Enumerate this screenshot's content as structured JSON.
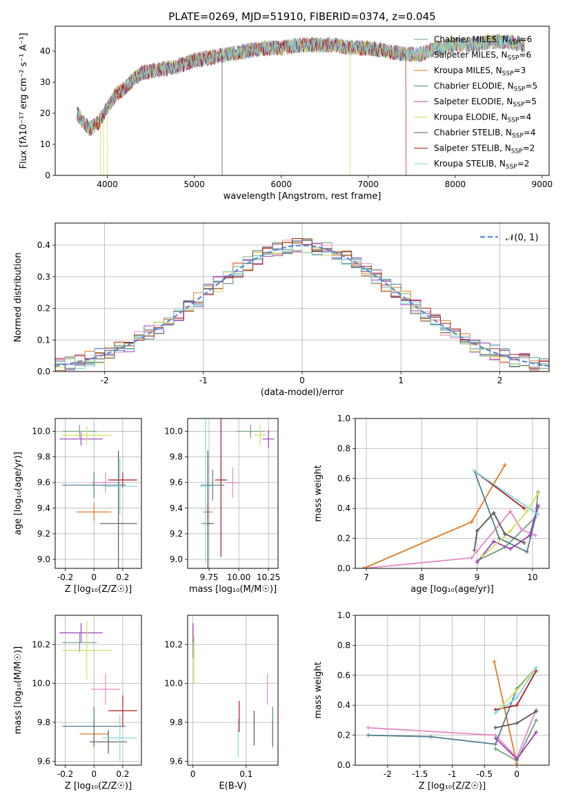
{
  "figure_title": "PLATE=0269, MJD=51910, FIBERID=0374, z=0.045",
  "model_colors": [
    "#6a9f7d",
    "#e887c0",
    "#e07a1f",
    "#4c7d8e",
    "#9b3fb8",
    "#cfe05a",
    "#555555",
    "#b0171c",
    "#7fd6e0"
  ],
  "chart_data": [
    {
      "id": "spectrum",
      "type": "line",
      "title": "PLATE=0269, MJD=51910, FIBERID=0374, z=0.045",
      "xlabel": "wavelength [Angstrom, rest frame]",
      "ylabel": "Flux [fλ10⁻¹⁷ erg cm⁻² s⁻¹ A⁻¹]",
      "xlim": [
        3400,
        9080
      ],
      "ylim": [
        0,
        48
      ],
      "xticks": [
        4000,
        5000,
        6000,
        7000,
        8000,
        9000
      ],
      "yticks": [
        0,
        10,
        20,
        30,
        40
      ],
      "grid": false,
      "legend": "top-right",
      "series": [
        {
          "name": "Chabrier MILES, N",
          "sub": "SSP",
          "suffix": "=6"
        },
        {
          "name": "Salpeter MILES, N",
          "sub": "SSP",
          "suffix": "=6"
        },
        {
          "name": "Kroupa MILES, N",
          "sub": "SSP",
          "suffix": "=3"
        },
        {
          "name": "Chabrier ELODIE, N",
          "sub": "SSP",
          "suffix": "=5"
        },
        {
          "name": "Salpeter ELODIE, N",
          "sub": "SSP",
          "suffix": "=5"
        },
        {
          "name": "Kroupa ELODIE, N",
          "sub": "SSP",
          "suffix": "=4"
        },
        {
          "name": "Chabrier STELIB, N",
          "sub": "SSP",
          "suffix": "=4"
        },
        {
          "name": "Salpeter STELIB, N",
          "sub": "SSP",
          "suffix": "=2"
        },
        {
          "name": "Kroupa STELIB, N",
          "sub": "SSP",
          "suffix": "=2"
        }
      ],
      "continuum": {
        "x": [
          3650,
          3700,
          3800,
          3900,
          4000,
          4100,
          4200,
          4300,
          4400,
          4600,
          4800,
          5000,
          5200,
          5400,
          5600,
          5800,
          6000,
          6200,
          6400,
          6600,
          6800,
          7000,
          7200,
          7400,
          7600,
          7800,
          8000,
          8200,
          8400,
          8600,
          8800
        ],
        "y": [
          20,
          18,
          15,
          17,
          22,
          26,
          28,
          31,
          33,
          34,
          35,
          37,
          38,
          39,
          40,
          41,
          41,
          42,
          42,
          42,
          41,
          41,
          40,
          39,
          39,
          41,
          42,
          42,
          43,
          43,
          42
        ]
      }
    },
    {
      "id": "residuals",
      "type": "step",
      "xlabel": "(data-model)/error",
      "ylabel": "Normed distribution",
      "xlim": [
        -2.5,
        2.5
      ],
      "ylim": [
        0,
        0.47
      ],
      "xticks": [
        -2,
        -1,
        0,
        1,
        2
      ],
      "yticks": [
        0.0,
        0.1,
        0.2,
        0.3,
        0.4
      ],
      "grid": true,
      "legend": "top-right",
      "reference": {
        "name": "𝒩(0, 1)",
        "mean": 0,
        "sigma": 1
      },
      "bin_width": 0.1
    },
    {
      "id": "age-vs-Z",
      "type": "scatter",
      "xlabel": "Z [log₁₀(Z/Z☉)]",
      "ylabel": "age  [log₁₀(age/yr)]",
      "xlim": [
        -0.27,
        0.33
      ],
      "ylim": [
        8.93,
        10.1
      ],
      "xticks": [
        -0.2,
        0.0,
        0.2
      ],
      "yticks": [
        9.0,
        9.2,
        9.4,
        9.6,
        9.8,
        10.0
      ],
      "grid": true,
      "points": [
        {
          "x": -0.1,
          "y": 10.0,
          "ex": 0.12,
          "ey": 0.05,
          "c": 0
        },
        {
          "x": 0.08,
          "y": 9.6,
          "ex": 0.1,
          "ey": 0.08,
          "c": 1
        },
        {
          "x": 0.0,
          "y": 9.37,
          "ex": 0.12,
          "ey": 0.07,
          "c": 2
        },
        {
          "x": 0.0,
          "y": 9.58,
          "ex": 0.22,
          "ey": 0.1,
          "c": 3
        },
        {
          "x": -0.09,
          "y": 9.94,
          "ex": 0.15,
          "ey": 0.05,
          "c": 4
        },
        {
          "x": -0.05,
          "y": 9.97,
          "ex": 0.17,
          "ey": 0.07,
          "c": 5
        },
        {
          "x": 0.17,
          "y": 9.28,
          "ex": 0.13,
          "ey": 0.57,
          "c": 6
        },
        {
          "x": 0.2,
          "y": 9.62,
          "ex": 0.1,
          "ey": 0.06,
          "c": 7
        },
        {
          "x": 0.18,
          "y": 9.57,
          "ex": 0.12,
          "ey": 0.22,
          "c": 8
        }
      ]
    },
    {
      "id": "age-vs-mass",
      "type": "scatter",
      "xlabel": "mass [log₁₀(M/M☉)]",
      "ylabel": "",
      "xlim": [
        9.57,
        10.33
      ],
      "ylim": [
        8.93,
        10.1
      ],
      "xticks": [
        9.75,
        10.0,
        10.25
      ],
      "xticklabels": [
        "9.75",
        "10.00",
        "10.25"
      ],
      "yticks": [
        9.0,
        9.2,
        9.4,
        9.6,
        9.8,
        10.0
      ],
      "grid": true,
      "points": [
        {
          "x": 10.1,
          "y": 10.0,
          "ex": 0.12,
          "ey": 0.05,
          "c": 0
        },
        {
          "x": 9.95,
          "y": 9.6,
          "ex": 0.06,
          "ey": 0.12,
          "c": 1
        },
        {
          "x": 9.74,
          "y": 9.37,
          "ex": 0.04,
          "ey": 0.07,
          "c": 2
        },
        {
          "x": 9.78,
          "y": 9.58,
          "ex": 0.1,
          "ey": 0.12,
          "c": 3
        },
        {
          "x": 10.25,
          "y": 9.94,
          "ex": 0.05,
          "ey": 0.07,
          "c": 4
        },
        {
          "x": 10.18,
          "y": 9.97,
          "ex": 0.05,
          "ey": 0.08,
          "c": 5
        },
        {
          "x": 9.74,
          "y": 9.28,
          "ex": 0.05,
          "ey": 0.57,
          "c": 6
        },
        {
          "x": 9.85,
          "y": 9.62,
          "ex": 0.05,
          "ey": 0.6,
          "c": 7
        },
        {
          "x": 9.72,
          "y": 9.57,
          "ex": 0.05,
          "ey": 0.6,
          "c": 8
        }
      ]
    },
    {
      "id": "weight-vs-age",
      "type": "line",
      "xlabel": "age  [log₁₀(age/yr)]",
      "ylabel": "mass weight",
      "xlim": [
        6.8,
        10.3
      ],
      "ylim": [
        0,
        1.0
      ],
      "xticks": [
        7,
        8,
        9,
        10
      ],
      "yticks": [
        0.0,
        0.2,
        0.4,
        0.6,
        0.8,
        1.0
      ],
      "grid": true,
      "series": [
        {
          "c": 0,
          "x": [
            9.0,
            9.5,
            10.05,
            10.1
          ],
          "y": [
            0.05,
            0.14,
            0.34,
            0.51
          ]
        },
        {
          "c": 1,
          "x": [
            6.95,
            8.9,
            9.6,
            9.8,
            10.05
          ],
          "y": [
            0.0,
            0.07,
            0.38,
            0.26,
            0.22
          ]
        },
        {
          "c": 2,
          "x": [
            6.95,
            8.9,
            9.5
          ],
          "y": [
            0.0,
            0.31,
            0.69
          ]
        },
        {
          "c": 3,
          "x": [
            8.95,
            9.4,
            9.9,
            10.1
          ],
          "y": [
            0.65,
            0.2,
            0.11,
            0.41
          ]
        },
        {
          "c": 4,
          "x": [
            9.0,
            9.3,
            9.6,
            9.95,
            10.1
          ],
          "y": [
            0.04,
            0.18,
            0.13,
            0.22,
            0.42
          ]
        },
        {
          "c": 5,
          "x": [
            9.1,
            9.6,
            9.9,
            10.1
          ],
          "y": [
            0.08,
            0.25,
            0.38,
            0.5
          ]
        },
        {
          "c": 6,
          "x": [
            8.95,
            9.0,
            9.3,
            9.5,
            9.85
          ],
          "y": [
            0.12,
            0.25,
            0.37,
            0.23,
            0.17
          ]
        },
        {
          "c": 7,
          "x": [
            8.95,
            9.85
          ],
          "y": [
            0.65,
            0.4
          ]
        },
        {
          "c": 8,
          "x": [
            8.95,
            10.1
          ],
          "y": [
            0.65,
            0.36
          ]
        }
      ]
    },
    {
      "id": "mass-vs-Z",
      "type": "scatter",
      "xlabel": "Z [log₁₀(Z/Z☉)]",
      "ylabel": "mass [log₁₀(M/M☉)]",
      "xlim": [
        -0.27,
        0.33
      ],
      "ylim": [
        9.58,
        10.35
      ],
      "xticks": [
        -0.2,
        0.0,
        0.2
      ],
      "yticks": [
        9.6,
        9.8,
        10.0,
        10.2
      ],
      "grid": true,
      "points": [
        {
          "x": -0.1,
          "y": 10.21,
          "ex": 0.12,
          "ey": 0.05,
          "c": 0
        },
        {
          "x": 0.08,
          "y": 9.97,
          "ex": 0.1,
          "ey": 0.08,
          "c": 1
        },
        {
          "x": 0.0,
          "y": 9.74,
          "ex": 0.1,
          "ey": 0.07,
          "c": 2
        },
        {
          "x": 0.0,
          "y": 9.78,
          "ex": 0.22,
          "ey": 0.1,
          "c": 3
        },
        {
          "x": -0.09,
          "y": 10.26,
          "ex": 0.15,
          "ey": 0.05,
          "c": 4
        },
        {
          "x": -0.05,
          "y": 10.17,
          "ex": 0.17,
          "ey": 0.15,
          "c": 5
        },
        {
          "x": 0.1,
          "y": 9.7,
          "ex": 0.13,
          "ey": 0.06,
          "c": 6
        },
        {
          "x": 0.2,
          "y": 9.86,
          "ex": 0.1,
          "ey": 0.08,
          "c": 7
        },
        {
          "x": 0.18,
          "y": 9.72,
          "ex": 0.12,
          "ey": 0.12,
          "c": 8
        }
      ]
    },
    {
      "id": "mass-vs-ebv",
      "type": "scatter",
      "xlabel": "E(B-V)",
      "ylabel": "",
      "xlim": [
        -0.01,
        0.16
      ],
      "ylim": [
        9.58,
        10.35
      ],
      "xticks": [
        0.0,
        0.1
      ],
      "yticks": [
        9.6,
        9.8,
        10.0,
        10.2
      ],
      "grid": true,
      "points": [
        {
          "x": 0.0,
          "y": 10.21,
          "ex": 0.0,
          "ey": 0.08,
          "c": 0
        },
        {
          "x": 0.14,
          "y": 9.97,
          "ex": 0.0,
          "ey": 0.08,
          "c": 1
        },
        {
          "x": 0.15,
          "y": 9.74,
          "ex": 0.0,
          "ey": 0.07,
          "c": 2
        },
        {
          "x": 0.15,
          "y": 9.78,
          "ex": 0.0,
          "ey": 0.1,
          "c": 3
        },
        {
          "x": 0.0,
          "y": 10.26,
          "ex": 0.0,
          "ey": 0.05,
          "c": 4
        },
        {
          "x": 0.002,
          "y": 10.12,
          "ex": 0.0,
          "ey": 0.12,
          "c": 5
        },
        {
          "x": 0.115,
          "y": 9.77,
          "ex": 0.0,
          "ey": 0.09,
          "c": 6
        },
        {
          "x": 0.087,
          "y": 9.83,
          "ex": 0.0,
          "ey": 0.08,
          "c": 7
        },
        {
          "x": 0.085,
          "y": 9.72,
          "ex": 0.0,
          "ey": 0.1,
          "c": 8
        }
      ]
    },
    {
      "id": "weight-vs-Z",
      "type": "line",
      "xlabel": "Z [log₁₀(Z/Z☉)]",
      "ylabel": "mass weight",
      "xlim": [
        -2.5,
        0.5
      ],
      "ylim": [
        0,
        1.0
      ],
      "xticks": [
        -2.0,
        -1.5,
        -1.0,
        -0.5,
        0.0
      ],
      "yticks": [
        0.0,
        0.2,
        0.4,
        0.6,
        0.8,
        1.0
      ],
      "grid": true,
      "series": [
        {
          "c": 0,
          "x": [
            -0.33,
            0.0,
            0.3
          ],
          "y": [
            0.11,
            0.03,
            0.3
          ]
        },
        {
          "c": 1,
          "x": [
            -2.3,
            -0.33,
            0.0,
            0.3
          ],
          "y": [
            0.25,
            0.2,
            0.05,
            0.37
          ]
        },
        {
          "c": 2,
          "x": [
            -0.35,
            0.0
          ],
          "y": [
            0.69,
            0.01
          ]
        },
        {
          "c": 3,
          "x": [
            -2.3,
            -1.33,
            -0.33,
            0.0,
            0.3
          ],
          "y": [
            0.2,
            0.19,
            0.14,
            0.51,
            0.65
          ]
        },
        {
          "c": 4,
          "x": [
            -0.33,
            0.0,
            0.3
          ],
          "y": [
            0.18,
            0.04,
            0.22
          ]
        },
        {
          "c": 5,
          "x": [
            -0.33,
            0.0,
            0.3
          ],
          "y": [
            0.35,
            0.5,
            0.65
          ]
        },
        {
          "c": 6,
          "x": [
            -0.33,
            0.0,
            0.3
          ],
          "y": [
            0.25,
            0.28,
            0.36
          ]
        },
        {
          "c": 7,
          "x": [
            -0.33,
            0.0,
            0.3
          ],
          "y": [
            0.37,
            0.4,
            0.63
          ]
        },
        {
          "c": 8,
          "x": [
            -0.33,
            0.0,
            0.3
          ],
          "y": [
            0.35,
            0.45,
            0.65
          ]
        }
      ]
    }
  ]
}
